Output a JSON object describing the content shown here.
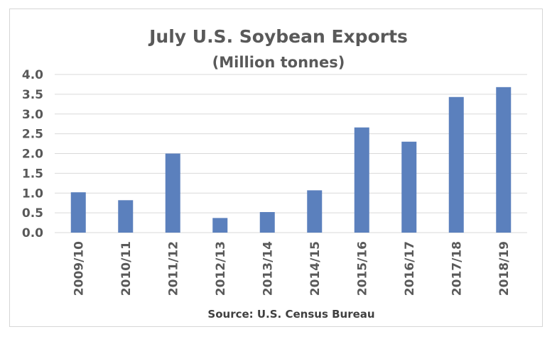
{
  "chart_data": {
    "type": "bar",
    "title": "July U.S. Soybean Exports",
    "subtitle": "(Million tonnes)",
    "source": "Source: U.S. Census Bureau",
    "categories": [
      "2009/10",
      "2010/11",
      "2011/12",
      "2012/13",
      "2013/14",
      "2014/15",
      "2015/16",
      "2016/17",
      "2017/18",
      "2018/19"
    ],
    "values": [
      1.02,
      0.82,
      2.0,
      0.37,
      0.52,
      1.07,
      2.66,
      2.3,
      3.43,
      3.68
    ],
    "ylim": [
      0,
      4.0
    ],
    "yticks": [
      "0.0",
      "0.5",
      "1.0",
      "1.5",
      "2.0",
      "2.5",
      "3.0",
      "3.5",
      "4.0"
    ],
    "grid": true,
    "colors": {
      "bar": "#5b80bd",
      "grid": "#d9d9d9",
      "text": "#595959"
    }
  }
}
